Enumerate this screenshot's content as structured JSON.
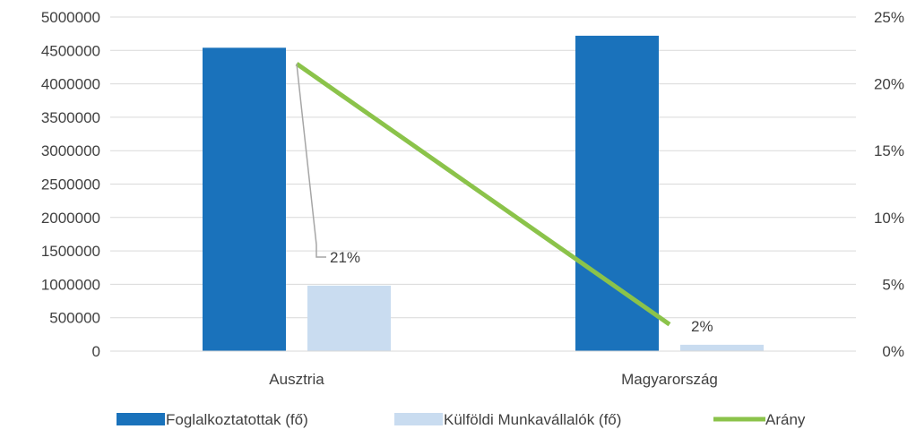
{
  "chart_data": {
    "type": "bar",
    "categories": [
      "Ausztria",
      "Magyarország"
    ],
    "series": [
      {
        "name": "Foglalkoztatottak (fő)",
        "kind": "bar",
        "axis": "left",
        "color": "#1a72bb",
        "values": [
          4540000,
          4720000
        ]
      },
      {
        "name": "Külföldi Munkavállalók (fő)",
        "kind": "bar",
        "axis": "left",
        "color": "#c9dcf0",
        "values": [
          980000,
          95000
        ]
      },
      {
        "name": "Arány",
        "kind": "line",
        "axis": "right",
        "color": "#8bc34a",
        "values": [
          0.215,
          0.02
        ],
        "data_labels": [
          "21%",
          "2%"
        ]
      }
    ],
    "ylim_left": [
      0,
      5000000
    ],
    "ylim_right": [
      0,
      0.25
    ],
    "yticks_left": [
      "0",
      "500000",
      "1000000",
      "1500000",
      "2000000",
      "2500000",
      "3000000",
      "3500000",
      "4000000",
      "4500000",
      "5000000"
    ],
    "yticks_right": [
      "0%",
      "5%",
      "10%",
      "15%",
      "20%",
      "25%"
    ],
    "grid": true,
    "legend_position": "bottom"
  }
}
